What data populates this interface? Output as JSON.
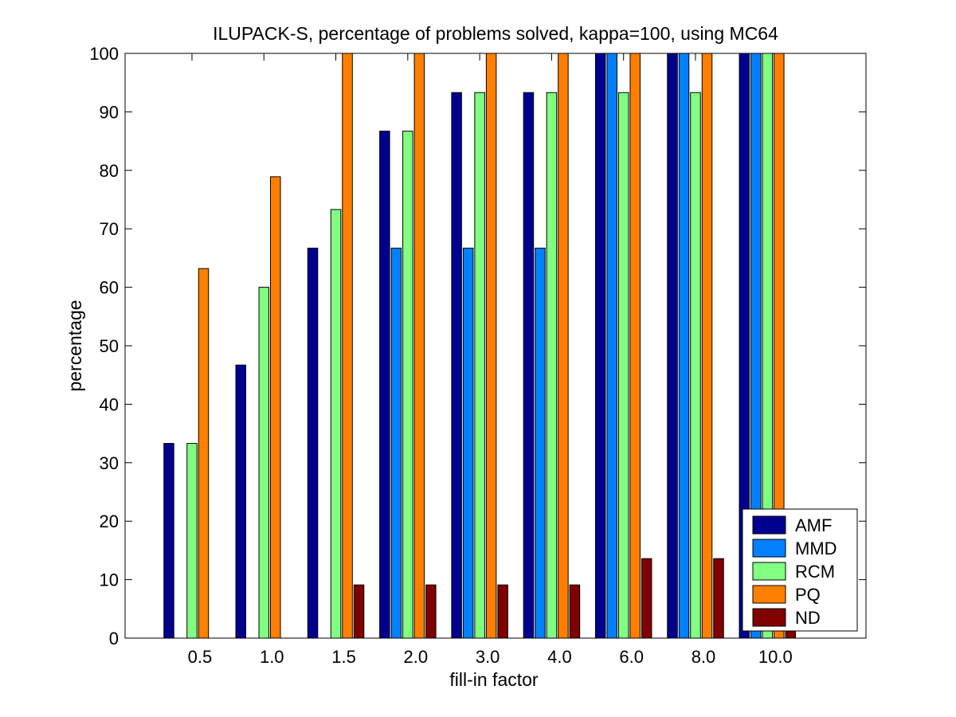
{
  "chart_data": {
    "type": "bar",
    "title": "ILUPACK-S, percentage of problems solved, kappa=100, using MC64",
    "xlabel": "fill-in factor",
    "ylabel": "percentage",
    "ylim": [
      0,
      100
    ],
    "yticks": [
      0,
      10,
      20,
      30,
      40,
      50,
      60,
      70,
      80,
      90,
      100
    ],
    "categories": [
      "0.5",
      "1.0",
      "1.5",
      "2.0",
      "3.0",
      "4.0",
      "6.0",
      "8.0",
      "10.0"
    ],
    "legend_position": "bottom-right",
    "series": [
      {
        "name": "AMF",
        "color": "#00008F",
        "values": [
          33.3,
          46.7,
          66.7,
          86.7,
          93.3,
          93.3,
          100,
          100,
          100
        ]
      },
      {
        "name": "MMD",
        "color": "#0080FF",
        "values": [
          0,
          0,
          0,
          66.7,
          66.7,
          66.7,
          100,
          100,
          100
        ]
      },
      {
        "name": "RCM",
        "color": "#80FF80",
        "values": [
          33.3,
          60,
          73.3,
          86.7,
          93.3,
          93.3,
          93.3,
          93.3,
          100
        ]
      },
      {
        "name": "PQ",
        "color": "#FF8000",
        "values": [
          63.2,
          78.9,
          100,
          100,
          100,
          100,
          100,
          100,
          100
        ]
      },
      {
        "name": "ND",
        "color": "#800000",
        "values": [
          0,
          0,
          9.1,
          9.1,
          9.1,
          9.1,
          13.6,
          13.6,
          13.6
        ]
      }
    ]
  }
}
